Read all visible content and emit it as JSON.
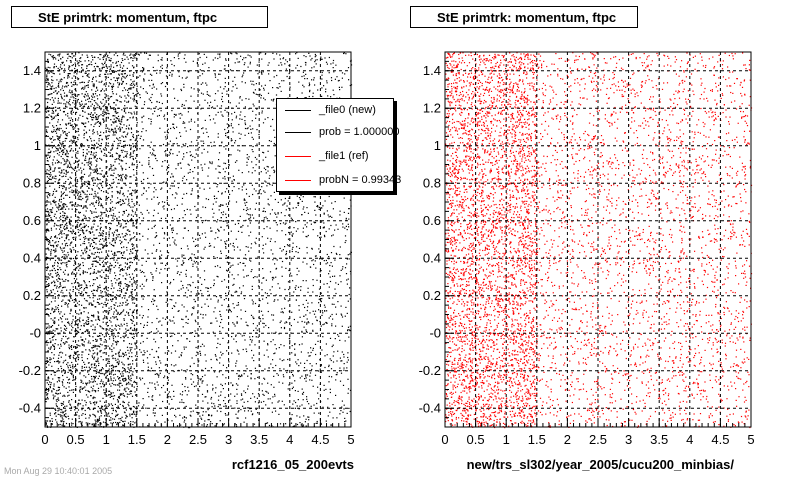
{
  "colors": {
    "file0": "#000000",
    "file1": "#ff0000"
  },
  "legend": {
    "items": [
      {
        "label": "_file0 (new)",
        "color": "#000000"
      },
      {
        "label": "prob = 1.000000",
        "color": "#000000"
      },
      {
        "label": "_file1 (ref)",
        "color": "#ff0000"
      },
      {
        "label": "probN = 0.99343",
        "color": "#ff0000"
      }
    ]
  },
  "timestamp": "Mon Aug 29 10:40:01 2005",
  "chart_data": [
    {
      "type": "scatter",
      "title": "StE primtrk: momentum, ftpc",
      "xlabel": "rcf1216_05_200evts",
      "ylabel": "",
      "xlim": [
        0,
        5
      ],
      "ylim": [
        -0.5,
        1.5
      ],
      "x_ticks": [
        "0",
        "0.5",
        "1",
        "1.5",
        "2",
        "2.5",
        "3",
        "3.5",
        "4",
        "4.5",
        "5"
      ],
      "y_ticks": [
        "-0.4",
        "-0.2",
        "-0",
        "0.2",
        "0.4",
        "0.6",
        "0.8",
        "1",
        "1.2",
        "1.4"
      ],
      "grid": true,
      "marker_color": "#000000",
      "density": "uniform over range, denser for x < 1.5"
    },
    {
      "type": "scatter",
      "title": "StE primtrk: momentum, ftpc",
      "xlabel": "new/trs_sl302/year_2005/cucu200_minbias/",
      "ylabel": "",
      "xlim": [
        0,
        5
      ],
      "ylim": [
        -0.5,
        1.5
      ],
      "x_ticks": [
        "0",
        "0.5",
        "1",
        "1.5",
        "2",
        "2.5",
        "3",
        "3.5",
        "4",
        "4.5",
        "5"
      ],
      "y_ticks": [
        "-0.4",
        "-0.2",
        "-0",
        "0.2",
        "0.4",
        "0.6",
        "0.8",
        "1",
        "1.2",
        "1.4"
      ],
      "grid": true,
      "marker_color": "#ff0000",
      "density": "uniform over range, denser for x < 1.5"
    }
  ]
}
